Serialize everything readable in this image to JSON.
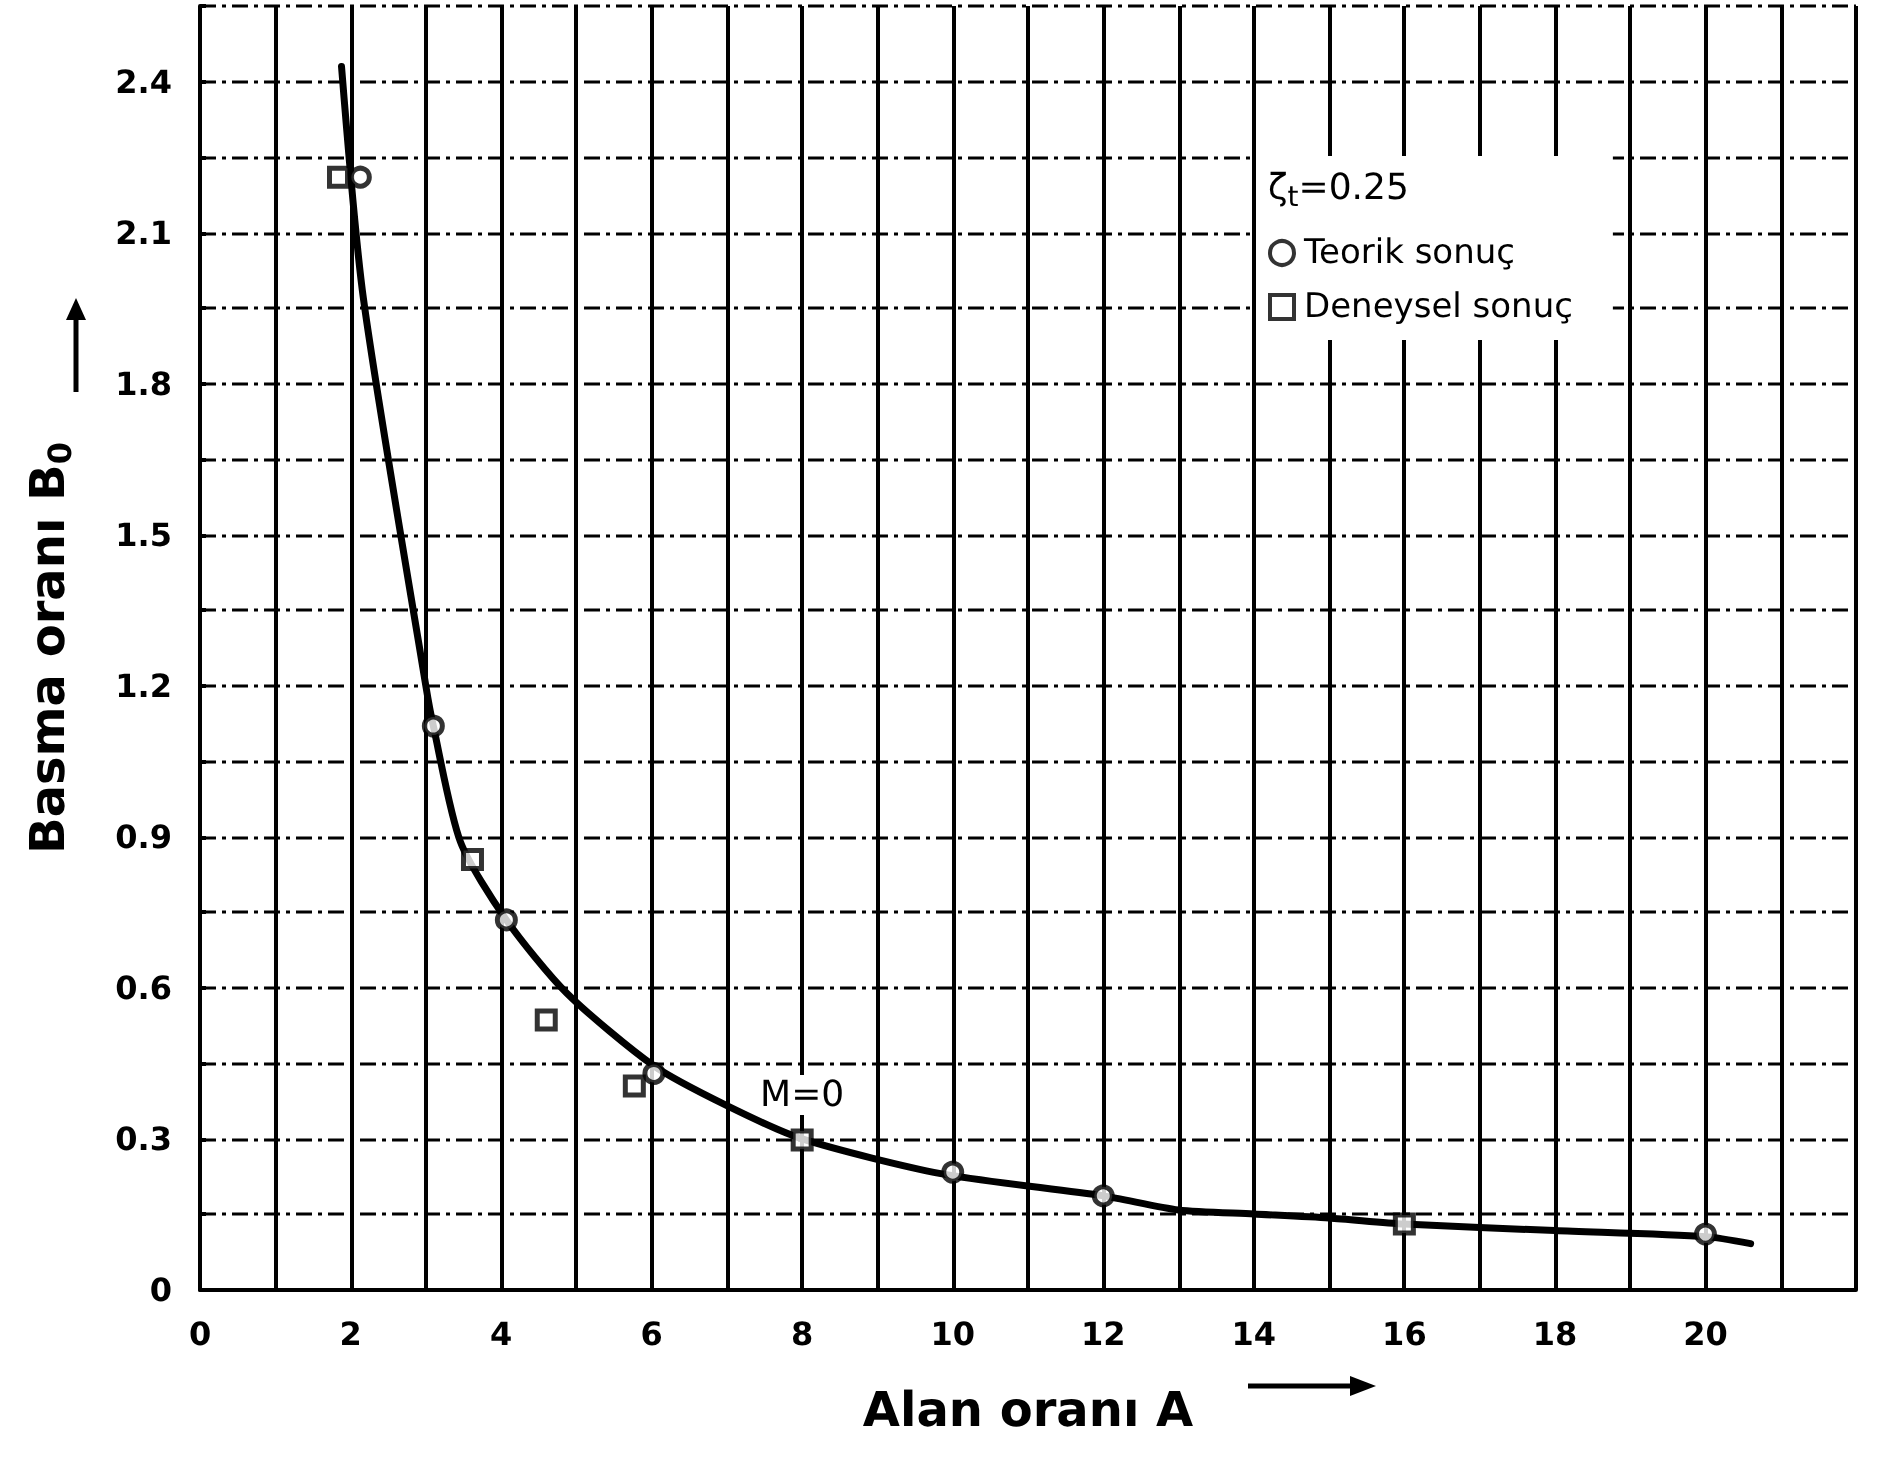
{
  "chart_data": {
    "type": "scatter",
    "xlabel": "Alan oranı A",
    "ylabel": "Basma oranı B$_{0}$",
    "legend_title": "ζ$_{t}$=0.25",
    "xlim": [
      0,
      22
    ],
    "ylim": [
      0,
      2.55
    ],
    "xticks": [
      0,
      {
        "value": 1,
        "label": null
      },
      2,
      {
        "value": 3,
        "label": null
      },
      4,
      {
        "value": 5,
        "label": null
      },
      6,
      {
        "value": 7,
        "label": null
      },
      8,
      {
        "value": 9,
        "label": null
      },
      10,
      {
        "value": 11,
        "label": null
      },
      12,
      {
        "value": 13,
        "label": null
      },
      14,
      {
        "value": 15,
        "label": null
      },
      16,
      {
        "value": 17,
        "label": null
      },
      18,
      {
        "value": 19,
        "label": null
      },
      20,
      {
        "value": 21,
        "label": null
      },
      {
        "value": 22,
        "label": null
      }
    ],
    "yticks": [
      0,
      {
        "value": 0.15,
        "label": null
      },
      0.3,
      {
        "value": 0.45,
        "label": null
      },
      0.6,
      {
        "value": 0.75,
        "label": null
      },
      0.9,
      {
        "value": 1.05,
        "label": null
      },
      1.2,
      {
        "value": 1.35,
        "label": null
      },
      1.5,
      {
        "value": 1.65,
        "label": null
      },
      1.8,
      {
        "value": 1.95,
        "label": null
      },
      2.1,
      {
        "value": 2.25,
        "label": null
      },
      2.4,
      {
        "value": 2.55,
        "label": null
      }
    ],
    "grid": true,
    "legend": "top right",
    "series": [
      {
        "type": "line",
        "marker": "none",
        "line_style": "solid",
        "color": "#000000",
        "x": [
          1.88,
          2.17,
          3.0,
          3.1,
          3.46,
          4.07,
          4.87,
          6.03,
          7.0,
          8.0,
          9.84,
          12.0,
          13.0,
          14.0,
          15.0,
          16.0,
          18.0,
          20.0,
          20.6
        ],
        "values": [
          2.43,
          1.97,
          1.2,
          1.12,
          0.89,
          0.735,
          0.59,
          0.445,
          0.366,
          0.3,
          0.231,
          0.187,
          0.159,
          0.151,
          0.143,
          0.131,
          0.118,
          0.106,
          0.092
        ]
      },
      {
        "name": "Teorik sonuç",
        "marker": "circle",
        "color": "#000000",
        "x": [
          2.13,
          3.1,
          4.07,
          6.03,
          10.0,
          12.0,
          20.0
        ],
        "values": [
          2.21,
          1.12,
          0.735,
          0.43,
          0.234,
          0.187,
          0.111
        ]
      },
      {
        "name": "Deneysel sonuç",
        "marker": "square",
        "color": "#000000",
        "x": [
          1.84,
          3.62,
          4.6,
          5.77,
          8.0,
          16.0
        ],
        "values": [
          2.21,
          0.855,
          0.536,
          0.405,
          0.298,
          0.131
        ]
      }
    ],
    "annotations": [
      {
        "text": "M=0",
        "x": 8,
        "y": 0.3
      }
    ]
  }
}
